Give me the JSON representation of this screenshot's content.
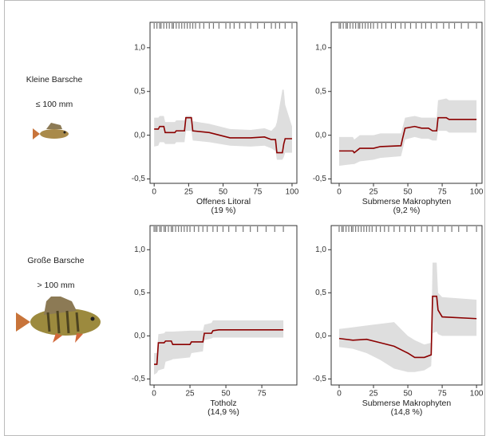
{
  "rows": [
    {
      "label": "Kleine Barsche",
      "size": "≤ 100 mm"
    },
    {
      "label": "Große Barsche",
      "size": "> 100 mm"
    }
  ],
  "chart_data": [
    {
      "type": "line",
      "xlabel": [
        "Offenes Litoral",
        "(19 %)"
      ],
      "xlim": [
        -3,
        103.5
      ],
      "ylim": [
        -0.55,
        1.29
      ],
      "xticks": [
        0,
        25,
        50,
        75,
        100
      ],
      "yticks": [
        {
          "value": -0.5,
          "label": "-0,5"
        },
        {
          "value": 0,
          "label": "0,0"
        },
        {
          "value": 0.5,
          "label": "0,5"
        },
        {
          "value": 1,
          "label": "1,0"
        }
      ],
      "band_color": "#dedede",
      "rug_color": "#777777",
      "rug": [
        0,
        2,
        4,
        5,
        7,
        9,
        11,
        13,
        14,
        16,
        18,
        20,
        22,
        24,
        26,
        28,
        30,
        33,
        36,
        40,
        43,
        47,
        52,
        55,
        58,
        62,
        66,
        70,
        75,
        80,
        85,
        88,
        91,
        95,
        100
      ],
      "x": [
        0,
        3,
        4,
        7,
        8,
        15,
        16,
        22,
        23,
        27,
        28,
        40,
        55,
        70,
        80,
        85,
        88,
        89,
        93,
        94,
        95,
        100
      ],
      "series": [
        {
          "color": "#8b0000",
          "values": [
            0.07,
            0.07,
            0.1,
            0.1,
            0.03,
            0.03,
            0.05,
            0.05,
            0.2,
            0.2,
            0.05,
            0.03,
            -0.03,
            -0.03,
            -0.02,
            -0.05,
            -0.05,
            -0.2,
            -0.2,
            -0.1,
            -0.04,
            -0.04
          ],
          "lower": [
            -0.13,
            -0.12,
            -0.08,
            -0.08,
            -0.1,
            -0.1,
            -0.08,
            -0.08,
            0.05,
            0.05,
            -0.06,
            -0.08,
            -0.12,
            -0.13,
            -0.12,
            -0.15,
            -0.18,
            -0.28,
            -0.28,
            -0.25,
            -0.2,
            -0.2
          ],
          "upper": [
            0.2,
            0.2,
            0.22,
            0.22,
            0.15,
            0.15,
            0.17,
            0.17,
            0.22,
            0.22,
            0.16,
            0.13,
            0.07,
            0.06,
            0.08,
            0.05,
            0.1,
            0.15,
            0.52,
            0.52,
            0.35,
            0.1
          ]
        }
      ]
    },
    {
      "type": "line",
      "xlabel": [
        "Submerse Makrophyten",
        "(9,2 %)"
      ],
      "xlim": [
        -5.8,
        104
      ],
      "ylim": [
        -0.55,
        1.29
      ],
      "xticks": [
        0,
        25,
        50,
        75,
        100
      ],
      "yticks": [
        {
          "value": -0.5,
          "label": "-0,5"
        },
        {
          "value": 0,
          "label": "0,0"
        },
        {
          "value": 0.5,
          "label": "0,5"
        },
        {
          "value": 1,
          "label": "1,0"
        }
      ],
      "band_color": "#dedede",
      "rug_color": "#777777",
      "rug": [
        0,
        1,
        3,
        5,
        6,
        8,
        10,
        12,
        14,
        15,
        17,
        19,
        21,
        23,
        25,
        28,
        31,
        34,
        38,
        41,
        45,
        48,
        52,
        56,
        60,
        63,
        67,
        71,
        76,
        80,
        84,
        89,
        94,
        100
      ],
      "x": [
        0,
        10,
        11,
        15,
        25,
        30,
        45,
        46,
        48,
        55,
        60,
        65,
        68,
        71,
        72,
        78,
        80,
        100
      ],
      "series": [
        {
          "color": "#8b0000",
          "values": [
            -0.18,
            -0.18,
            -0.2,
            -0.15,
            -0.15,
            -0.13,
            -0.12,
            -0.05,
            0.08,
            0.1,
            0.08,
            0.08,
            0.05,
            0.05,
            0.2,
            0.2,
            0.18,
            0.18
          ],
          "lower": [
            -0.35,
            -0.33,
            -0.33,
            -0.3,
            -0.28,
            -0.26,
            -0.24,
            -0.18,
            -0.05,
            -0.02,
            -0.04,
            -0.04,
            -0.06,
            -0.06,
            0.05,
            0.05,
            0.03,
            0.03
          ],
          "upper": [
            -0.02,
            -0.02,
            -0.05,
            0.0,
            0.0,
            0.02,
            0.02,
            0.08,
            0.2,
            0.22,
            0.2,
            0.2,
            0.2,
            0.2,
            0.4,
            0.42,
            0.4,
            0.4
          ]
        }
      ]
    },
    {
      "type": "line",
      "xlabel": [
        "Totholz",
        "(14,9 %)"
      ],
      "xlim": [
        -2.8,
        99.4
      ],
      "ylim": [
        -0.57,
        1.28
      ],
      "xticks": [
        0,
        25,
        50,
        75
      ],
      "yticks": [
        {
          "value": -0.5,
          "label": "-0,5"
        },
        {
          "value": 0,
          "label": "0,0"
        },
        {
          "value": 0.5,
          "label": "0,5"
        },
        {
          "value": 1,
          "label": "1,0"
        }
      ],
      "band_color": "#dedede",
      "rug_color": "#777777",
      "rug": [
        0,
        1,
        2,
        4,
        5,
        7,
        8,
        10,
        12,
        13,
        15,
        17,
        19,
        21,
        23,
        25,
        28,
        31,
        34,
        37,
        41,
        44,
        48,
        52,
        57,
        62,
        67,
        72,
        78,
        84,
        90
      ],
      "x": [
        0,
        2,
        3,
        7,
        8,
        12,
        13,
        25,
        26,
        34,
        35,
        40,
        41,
        45,
        90
      ],
      "series": [
        {
          "color": "#8b0000",
          "values": [
            -0.33,
            -0.33,
            -0.08,
            -0.08,
            -0.06,
            -0.06,
            -0.1,
            -0.1,
            -0.07,
            -0.07,
            0.03,
            0.03,
            0.06,
            0.07,
            0.07
          ],
          "lower": [
            -0.45,
            -0.43,
            -0.4,
            -0.38,
            -0.3,
            -0.28,
            -0.27,
            -0.25,
            -0.2,
            -0.18,
            -0.05,
            -0.03,
            -0.02,
            -0.02,
            -0.02
          ],
          "upper": [
            -0.2,
            -0.2,
            0.02,
            0.03,
            0.05,
            0.05,
            0.05,
            0.06,
            0.06,
            0.06,
            0.13,
            0.15,
            0.18,
            0.18,
            0.18
          ]
        }
      ]
    },
    {
      "type": "line",
      "xlabel": [
        "Submerse Makrophyten",
        "(14,8 %)"
      ],
      "xlim": [
        -5.8,
        104
      ],
      "ylim": [
        -0.57,
        1.28
      ],
      "xticks": [
        0,
        25,
        50,
        75,
        100
      ],
      "yticks": [
        {
          "value": -0.5,
          "label": "-0,5"
        },
        {
          "value": 0,
          "label": "0,0"
        },
        {
          "value": 0.5,
          "label": "0,5"
        },
        {
          "value": 1,
          "label": "1,0"
        }
      ],
      "band_color": "#dedede",
      "rug_color": "#777777",
      "rug": [
        0,
        2,
        3,
        5,
        7,
        9,
        10,
        12,
        14,
        16,
        18,
        20,
        22,
        24,
        27,
        30,
        33,
        36,
        40,
        44,
        48,
        52,
        55,
        60,
        64,
        68,
        72,
        77,
        82,
        87,
        93,
        100
      ],
      "x": [
        0,
        10,
        20,
        30,
        40,
        50,
        55,
        62,
        67,
        68,
        71,
        72,
        75,
        100
      ],
      "series": [
        {
          "color": "#8b0000",
          "values": [
            -0.03,
            -0.05,
            -0.04,
            -0.08,
            -0.12,
            -0.2,
            -0.25,
            -0.25,
            -0.22,
            0.46,
            0.46,
            0.3,
            0.22,
            0.2
          ],
          "lower": [
            -0.13,
            -0.15,
            -0.2,
            -0.28,
            -0.38,
            -0.42,
            -0.42,
            -0.4,
            -0.35,
            0.03,
            0.05,
            0.02,
            0.0,
            0.0
          ],
          "upper": [
            0.08,
            0.1,
            0.12,
            0.14,
            0.16,
            0.0,
            -0.05,
            -0.1,
            -0.08,
            0.85,
            0.85,
            0.5,
            0.45,
            0.42
          ]
        }
      ]
    }
  ]
}
